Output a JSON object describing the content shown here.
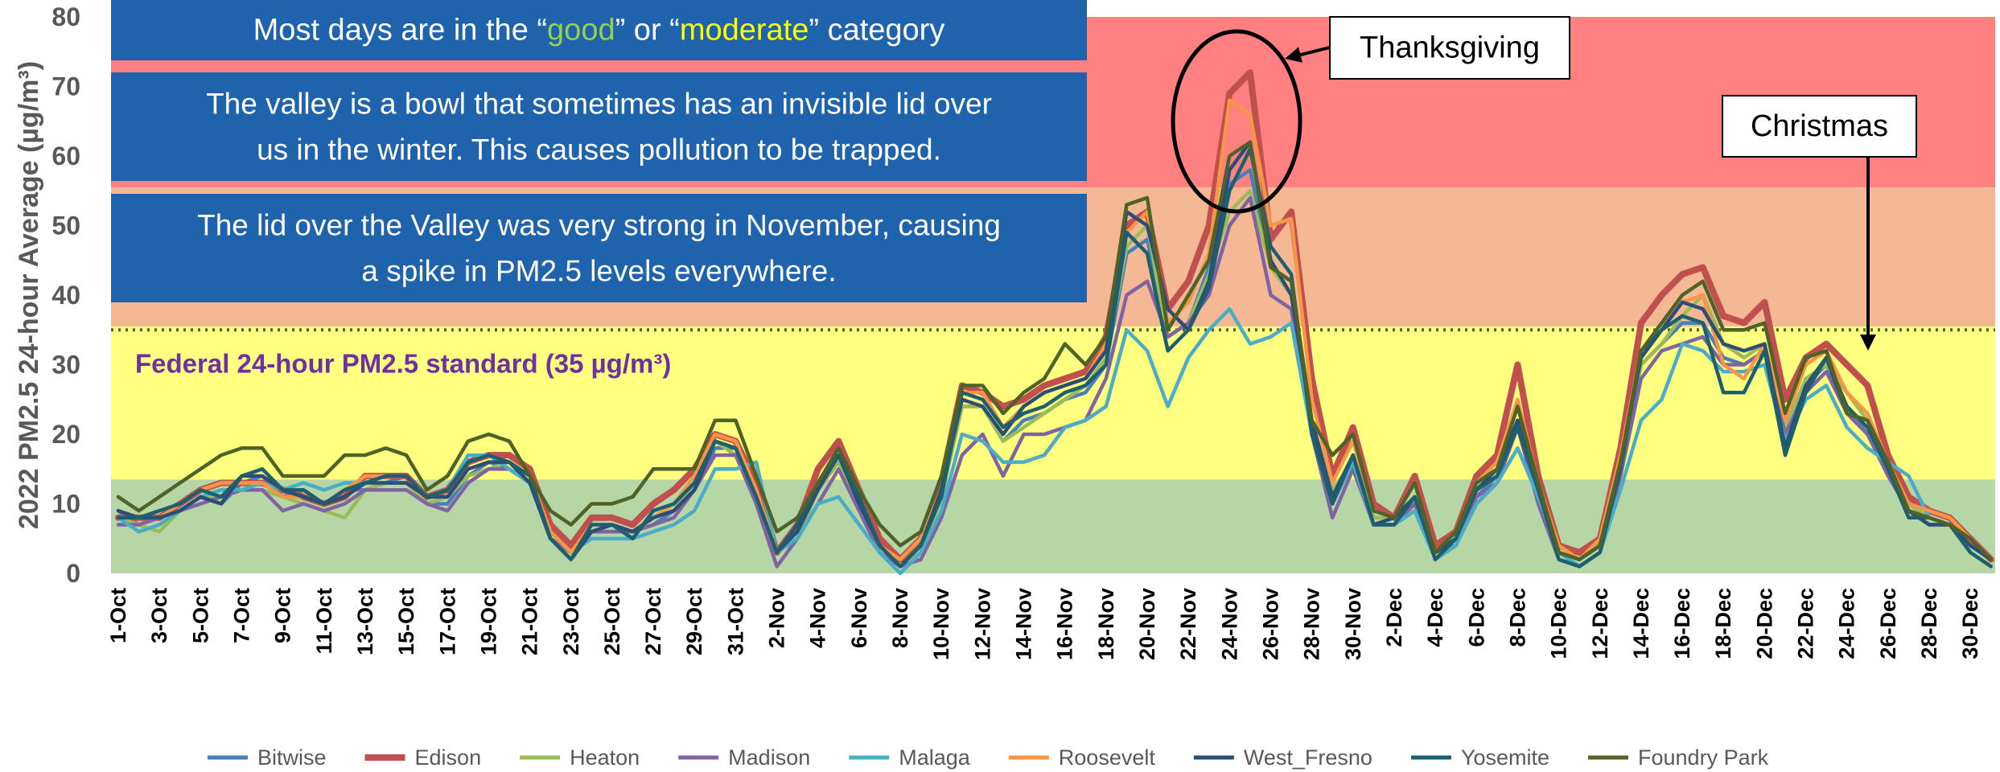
{
  "chart_data": {
    "type": "line",
    "ylabel": "2022 PM2.5 24-hour Average (µg/m³)",
    "ylim": [
      0,
      80
    ],
    "yticks": [
      0,
      10,
      20,
      30,
      40,
      50,
      60,
      70,
      80
    ],
    "grid": false,
    "bands": [
      {
        "from": 0,
        "to": 13.5,
        "color": "#b6d6a6"
      },
      {
        "from": 13.5,
        "to": 35.5,
        "color": "#ffff80"
      },
      {
        "from": 35.5,
        "to": 55.5,
        "color": "#f5b894"
      },
      {
        "from": 55.5,
        "to": 80,
        "color": "#ff8080"
      }
    ],
    "standard_line": {
      "value": 35,
      "label": "Federal 24-hour PM2.5 standard (35 µg/m³)",
      "color": "#4f6228",
      "label_color": "#7030a0"
    },
    "notes": [
      {
        "parts": [
          "Most days are in the “",
          "good",
          "” or “",
          "moderate",
          "” category"
        ],
        "part_colors": [
          "#ffffff",
          "#92d050",
          "#ffffff",
          "#ffff00",
          "#ffffff"
        ]
      },
      {
        "lines": [
          "The valley is a bowl that sometimes has an invisible lid over",
          "us in the winter. This causes pollution to be trapped."
        ]
      },
      {
        "lines": [
          "The lid over the Valley was very strong in November, causing",
          "a spike in PM2.5 levels everywhere."
        ]
      }
    ],
    "callouts": [
      "Thanksgiving",
      "Christmas"
    ],
    "categories": [
      "1-Oct",
      null,
      "3-Oct",
      null,
      "5-Oct",
      null,
      "7-Oct",
      null,
      "9-Oct",
      null,
      "11-Oct",
      null,
      "13-Oct",
      null,
      "15-Oct",
      null,
      "17-Oct",
      null,
      "19-Oct",
      null,
      "21-Oct",
      null,
      "23-Oct",
      null,
      "25-Oct",
      null,
      "27-Oct",
      null,
      "29-Oct",
      null,
      "31-Oct",
      null,
      "2-Nov",
      null,
      "4-Nov",
      null,
      "6-Nov",
      null,
      "8-Nov",
      null,
      "10-Nov",
      null,
      "12-Nov",
      null,
      "14-Nov",
      null,
      "16-Nov",
      null,
      "18-Nov",
      null,
      "20-Nov",
      null,
      "22-Nov",
      null,
      "24-Nov",
      null,
      "26-Nov",
      null,
      "28-Nov",
      null,
      "30-Nov",
      null,
      "2-Dec",
      null,
      "4-Dec",
      null,
      "6-Dec",
      null,
      "8-Dec",
      null,
      "10-Dec",
      null,
      "12-Dec",
      null,
      "14-Dec",
      null,
      "16-Dec",
      null,
      "18-Dec",
      null,
      "20-Dec",
      null,
      "22-Dec",
      null,
      "24-Dec",
      null,
      "26-Dec",
      null,
      "28-Dec",
      null,
      "30-Dec",
      null
    ],
    "series": [
      {
        "name": "Bitwise",
        "color": "#4a7ebb",
        "values": [
          9,
          7,
          8,
          9,
          11,
          10,
          13,
          14,
          11,
          12,
          10,
          12,
          12,
          13,
          14,
          10,
          10,
          14,
          16,
          15,
          13,
          5,
          3,
          6,
          6,
          6,
          7,
          9,
          12,
          18,
          18,
          12,
          3,
          6,
          12,
          16,
          10,
          4,
          1,
          4,
          11,
          24,
          24,
          19,
          22,
          23,
          25,
          26,
          30,
          46,
          48,
          34,
          36,
          44,
          56,
          58,
          44,
          42,
          22,
          11,
          17,
          8,
          8,
          11,
          3,
          5,
          11,
          14,
          22,
          12,
          3,
          2,
          4,
          15,
          30,
          33,
          36,
          36,
          31,
          30,
          32,
          21,
          27,
          30,
          24,
          20,
          15,
          10,
          8,
          7,
          4,
          2
        ]
      },
      {
        "name": "Edison",
        "color": "#c0504d",
        "values": [
          8,
          8,
          8,
          10,
          12,
          13,
          13,
          13,
          12,
          11,
          10,
          11,
          14,
          14,
          14,
          11,
          12,
          16,
          17,
          17,
          15,
          7,
          4,
          8,
          8,
          7,
          10,
          12,
          15,
          20,
          19,
          13,
          3,
          7,
          15,
          19,
          12,
          5,
          2,
          5,
          13,
          27,
          26,
          24,
          25,
          27,
          28,
          29,
          34,
          50,
          52,
          38,
          42,
          50,
          69,
          72,
          48,
          52,
          28,
          14,
          21,
          10,
          8,
          14,
          4,
          6,
          14,
          17,
          30,
          14,
          4,
          3,
          5,
          18,
          36,
          40,
          43,
          44,
          37,
          36,
          39,
          25,
          31,
          33,
          30,
          27,
          17,
          11,
          9,
          8,
          5,
          2
        ]
      },
      {
        "name": "Heaton",
        "color": "#9bbb59",
        "values": [
          8,
          7,
          6,
          9,
          11,
          11,
          12,
          12,
          11,
          10,
          9,
          8,
          12,
          13,
          13,
          10,
          11,
          14,
          15,
          16,
          14,
          6,
          3,
          6,
          6,
          6,
          8,
          9,
          13,
          19,
          17,
          11,
          3,
          5,
          12,
          16,
          9,
          4,
          1,
          3,
          11,
          24,
          24,
          19,
          21,
          23,
          25,
          27,
          31,
          47,
          50,
          34,
          36,
          43,
          52,
          55,
          44,
          40,
          22,
          12,
          16,
          8,
          8,
          11,
          3,
          5,
          12,
          14,
          22,
          11,
          3,
          2,
          4,
          15,
          30,
          33,
          37,
          40,
          33,
          31,
          33,
          21,
          28,
          30,
          26,
          22,
          15,
          10,
          8,
          7,
          5,
          2
        ]
      },
      {
        "name": "Madison",
        "color": "#8064a2",
        "values": [
          7,
          7,
          8,
          9,
          10,
          11,
          12,
          12,
          9,
          10,
          9,
          10,
          12,
          12,
          12,
          10,
          9,
          13,
          15,
          15,
          13,
          5,
          3,
          6,
          6,
          6,
          7,
          8,
          12,
          17,
          17,
          10,
          1,
          5,
          10,
          15,
          9,
          3,
          1,
          2,
          8,
          17,
          20,
          14,
          20,
          20,
          21,
          22,
          28,
          40,
          42,
          34,
          36,
          40,
          50,
          54,
          40,
          38,
          20,
          8,
          15,
          7,
          7,
          10,
          3,
          4,
          11,
          13,
          21,
          10,
          2,
          1,
          3,
          14,
          28,
          32,
          33,
          34,
          30,
          30,
          32,
          20,
          26,
          29,
          23,
          20,
          14,
          9,
          7,
          7,
          5,
          2
        ]
      },
      {
        "name": "Malaga",
        "color": "#4bacc6",
        "values": [
          8,
          6,
          7,
          9,
          11,
          12,
          12,
          13,
          12,
          13,
          12,
          13,
          13,
          14,
          14,
          11,
          12,
          17,
          17,
          15,
          13,
          6,
          3,
          5,
          5,
          5,
          6,
          7,
          9,
          15,
          15,
          16,
          3,
          5,
          10,
          11,
          7,
          3,
          0,
          3,
          9,
          20,
          19,
          16,
          16,
          17,
          21,
          22,
          24,
          35,
          32,
          24,
          31,
          35,
          38,
          33,
          34,
          36,
          20,
          10,
          16,
          7,
          7,
          9,
          2,
          4,
          10,
          13,
          18,
          11,
          3,
          1,
          3,
          12,
          22,
          25,
          33,
          32,
          29,
          29,
          30,
          19,
          25,
          27,
          21,
          18,
          16,
          14,
          8,
          7,
          4,
          2
        ]
      },
      {
        "name": "Roosevelt",
        "color": "#f79646",
        "values": [
          8,
          8,
          8,
          10,
          12,
          13,
          13,
          13,
          11,
          11,
          10,
          12,
          14,
          14,
          14,
          11,
          12,
          16,
          17,
          16,
          14,
          6,
          3,
          7,
          7,
          6,
          8,
          10,
          14,
          20,
          19,
          12,
          3,
          6,
          13,
          18,
          11,
          4,
          2,
          5,
          12,
          26,
          26,
          21,
          24,
          26,
          27,
          28,
          33,
          49,
          52,
          36,
          39,
          46,
          68,
          66,
          50,
          51,
          25,
          13,
          19,
          9,
          8,
          13,
          3,
          6,
          13,
          16,
          25,
          13,
          4,
          2,
          5,
          17,
          32,
          36,
          39,
          40,
          30,
          28,
          33,
          22,
          30,
          32,
          26,
          23,
          16,
          10,
          9,
          8,
          5,
          2
        ]
      },
      {
        "name": "West_Fresno",
        "color": "#2c4d75",
        "values": [
          9,
          8,
          8,
          9,
          11,
          10,
          14,
          14,
          12,
          11,
          10,
          11,
          13,
          13,
          13,
          11,
          11,
          15,
          16,
          16,
          13,
          5,
          2,
          6,
          7,
          6,
          8,
          9,
          12,
          19,
          18,
          11,
          3,
          6,
          12,
          17,
          10,
          4,
          1,
          4,
          12,
          25,
          24,
          20,
          24,
          26,
          27,
          28,
          32,
          52,
          50,
          38,
          35,
          42,
          58,
          62,
          45,
          40,
          22,
          11,
          17,
          7,
          8,
          11,
          3,
          5,
          12,
          15,
          22,
          12,
          3,
          2,
          4,
          16,
          31,
          35,
          39,
          38,
          33,
          32,
          33,
          18,
          27,
          31,
          23,
          22,
          16,
          9,
          7,
          7,
          4,
          2
        ]
      },
      {
        "name": "Yosemite",
        "color": "#1e5f6e",
        "values": [
          8,
          8,
          9,
          10,
          12,
          11,
          14,
          15,
          12,
          12,
          10,
          12,
          13,
          14,
          14,
          11,
          12,
          16,
          17,
          16,
          14,
          5,
          2,
          7,
          7,
          5,
          9,
          10,
          13,
          19,
          18,
          11,
          3,
          7,
          13,
          17,
          11,
          4,
          1,
          4,
          11,
          26,
          25,
          21,
          23,
          24,
          26,
          27,
          30,
          49,
          46,
          32,
          35,
          41,
          55,
          61,
          47,
          43,
          20,
          10,
          17,
          7,
          7,
          11,
          2,
          5,
          12,
          14,
          21,
          12,
          2,
          1,
          3,
          15,
          32,
          35,
          37,
          36,
          26,
          26,
          32,
          17,
          26,
          31,
          24,
          21,
          15,
          8,
          8,
          7,
          3,
          1
        ]
      },
      {
        "name": "Foundry Park",
        "color": "#4f6228",
        "values": [
          11,
          9,
          11,
          13,
          15,
          17,
          18,
          18,
          14,
          14,
          14,
          17,
          17,
          18,
          17,
          12,
          14,
          19,
          20,
          19,
          14,
          9,
          7,
          10,
          10,
          11,
          15,
          15,
          15,
          22,
          22,
          14,
          6,
          8,
          13,
          18,
          12,
          7,
          4,
          6,
          14,
          27,
          27,
          23,
          26,
          28,
          33,
          30,
          34,
          53,
          54,
          35,
          40,
          45,
          60,
          62,
          44,
          42,
          22,
          17,
          20,
          9,
          8,
          13,
          3,
          6,
          13,
          15,
          24,
          13,
          3,
          2,
          4,
          16,
          32,
          36,
          40,
          42,
          35,
          35,
          36,
          23,
          31,
          32,
          23,
          22,
          16,
          9,
          8,
          7,
          5,
          2
        ]
      }
    ]
  }
}
